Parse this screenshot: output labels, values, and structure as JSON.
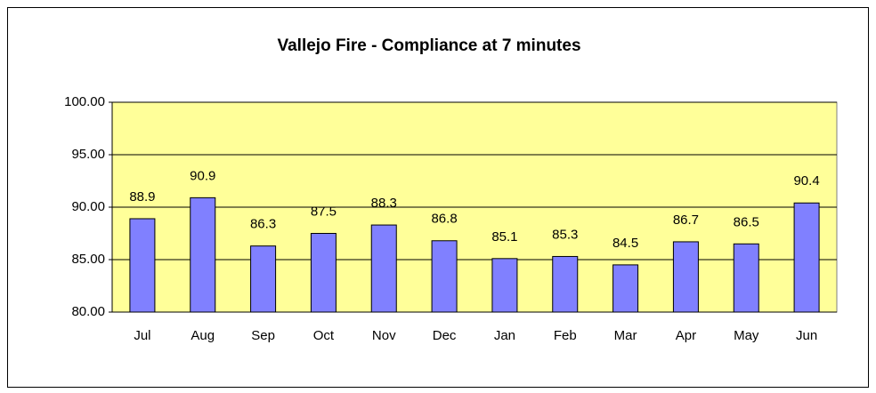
{
  "chart_data": {
    "type": "bar",
    "title": "Vallejo Fire - Compliance at 7 minutes",
    "categories": [
      "Jul",
      "Aug",
      "Sep",
      "Oct",
      "Nov",
      "Dec",
      "Jan",
      "Feb",
      "Mar",
      "Apr",
      "May",
      "Jun"
    ],
    "values": [
      88.9,
      90.9,
      86.3,
      87.5,
      88.3,
      86.8,
      85.1,
      85.3,
      84.5,
      86.7,
      86.5,
      90.4
    ],
    "color": "#8080ff",
    "plot_background": "#ffff99",
    "ylim": [
      80,
      100
    ],
    "yticks": [
      {
        "value": 80,
        "label": "80.00"
      },
      {
        "value": 85,
        "label": "85.00"
      },
      {
        "value": 90,
        "label": "90.00"
      },
      {
        "value": 95,
        "label": "95.00"
      },
      {
        "value": 100,
        "label": "100.00"
      }
    ],
    "grid": true
  }
}
